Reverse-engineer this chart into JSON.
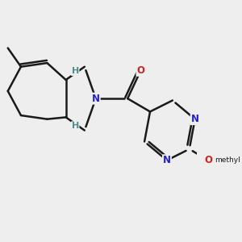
{
  "background_color": "#eeeeee",
  "bond_color": "#1a1a1a",
  "N_color": "#2222cc",
  "O_color": "#cc2222",
  "H_color": "#4a9090",
  "line_width": 1.8,
  "font_size_atom": 8.5,
  "figsize": [
    3.0,
    3.0
  ],
  "dpi": 100,
  "xlim": [
    -2.0,
    3.2
  ],
  "ylim": [
    -3.0,
    1.8
  ]
}
